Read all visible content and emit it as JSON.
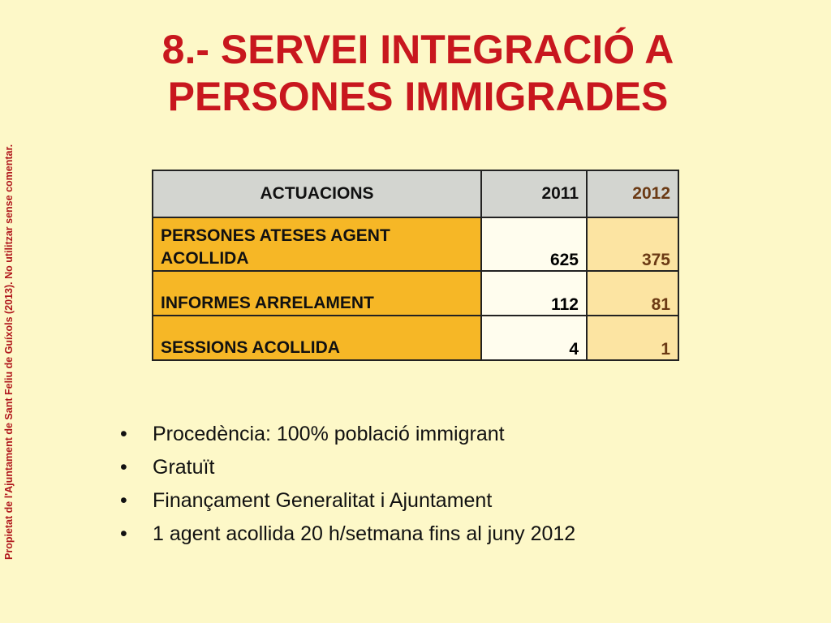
{
  "side_note": "Propietat de l'Ajuntament de Sant Feliu de Guíxols (2013). No utilitzar sense comentar.",
  "title_line1": "8.- SERVEI INTEGRACIÓ A",
  "title_line2": "PERSONES IMMIGRADES",
  "table": {
    "headers": [
      "ACTUACIONS",
      "2011",
      "2012"
    ],
    "rows": [
      {
        "label_line1": "PERSONES ATESES AGENT",
        "label_line2": "ACOLLIDA",
        "y2011": "625",
        "y2012": "375"
      },
      {
        "label_line1": "INFORMES ARRELAMENT",
        "y2011": "112",
        "y2012": "81"
      },
      {
        "label_line1": "SESSIONS ACOLLIDA",
        "y2011": "4",
        "y2012": "1"
      }
    ]
  },
  "bullet_symbol": "•",
  "bullets": [
    "Procedència: 100% població immigrant",
    "Gratuït",
    "Finançament Generalitat i Ajuntament",
    "1 agent acollida 20 h/setmana fins al juny 2012"
  ],
  "colors": {
    "background": "#fdf8c8",
    "title": "#c8171e",
    "header_bg": "#d3d5d0",
    "label_bg": "#f6b726",
    "col2012_bg": "#fce4a2"
  }
}
